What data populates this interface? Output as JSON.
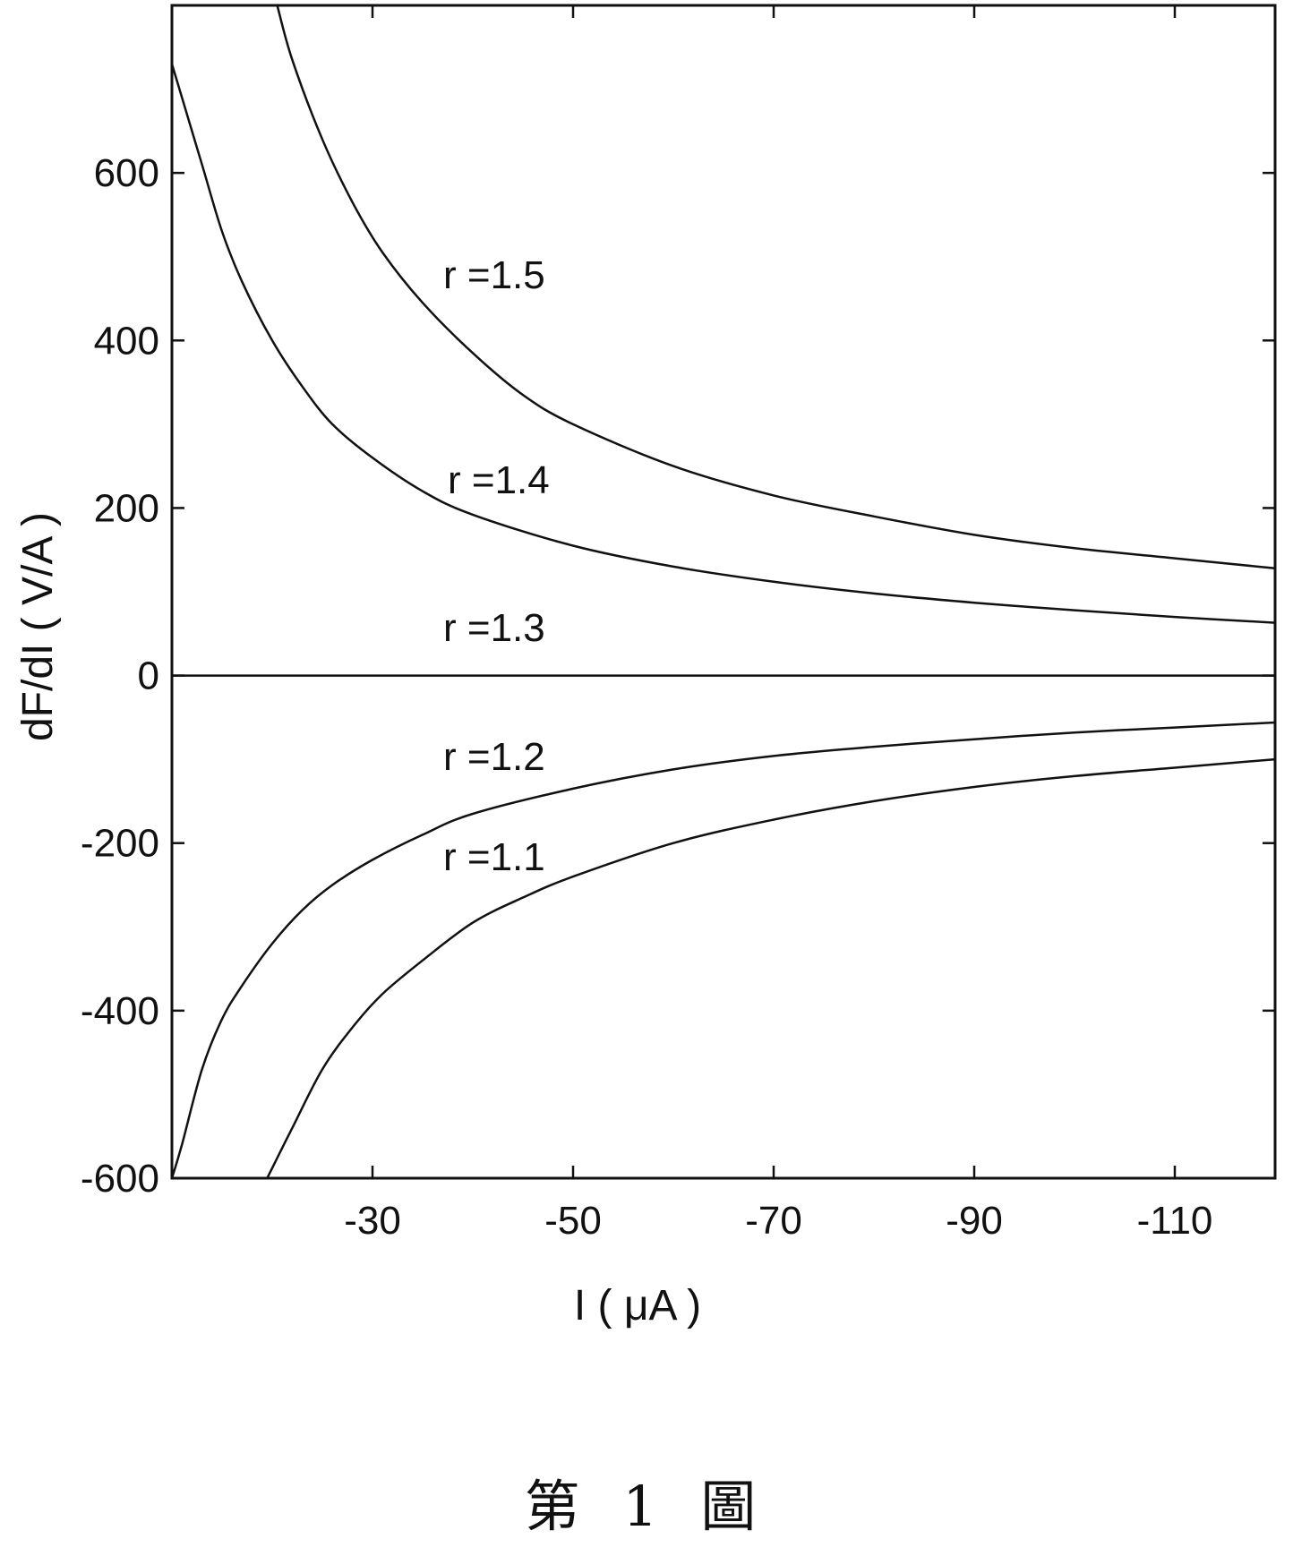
{
  "caption": "第 1 圖",
  "chart_data": {
    "type": "line",
    "title": "",
    "xlabel": "I  ( μA )",
    "ylabel": "dF/dI  ( V/A )",
    "xlim": [
      -10,
      -120
    ],
    "ylim": [
      -600,
      800
    ],
    "x_ticks": [
      -30,
      -50,
      -70,
      -90,
      -110
    ],
    "x_tick_labels": [
      "-30",
      "-50",
      "-70",
      "-90",
      "-110"
    ],
    "y_ticks": [
      -600,
      -400,
      -200,
      0,
      200,
      400,
      600
    ],
    "y_tick_labels": [
      "-600",
      "-400",
      "-200",
      "0",
      "200",
      "400",
      "600"
    ],
    "grid": false,
    "series": [
      {
        "name": "r =1.5",
        "x": [
          -20.5,
          -22,
          -25,
          -28,
          -31,
          -35,
          -40,
          -45,
          -50,
          -60,
          -70,
          -80,
          -90,
          -100,
          -110,
          -120
        ],
        "y": [
          800,
          735,
          640,
          565,
          505,
          445,
          385,
          335,
          300,
          250,
          215,
          190,
          168,
          152,
          140,
          128
        ]
      },
      {
        "name": "r =1.4",
        "x": [
          -10,
          -11,
          -13,
          -15,
          -17,
          -20,
          -23,
          -26,
          -30,
          -35,
          -40,
          -50,
          -60,
          -70,
          -80,
          -90,
          -100,
          -110,
          -120
        ],
        "y": [
          730,
          690,
          610,
          530,
          470,
          400,
          345,
          300,
          260,
          220,
          192,
          155,
          130,
          112,
          98,
          87,
          78,
          70,
          63
        ]
      },
      {
        "name": "r =1.3",
        "x": [
          -10,
          -120
        ],
        "y": [
          0,
          0
        ]
      },
      {
        "name": "r =1.2",
        "x": [
          -10,
          -11,
          -13,
          -15,
          -17,
          -20,
          -23,
          -26,
          -30,
          -35,
          -40,
          -50,
          -60,
          -70,
          -80,
          -90,
          -100,
          -110,
          -120
        ],
        "y": [
          -600,
          -560,
          -470,
          -410,
          -370,
          -320,
          -280,
          -250,
          -220,
          -190,
          -165,
          -135,
          -112,
          -96,
          -85,
          -76,
          -68,
          -62,
          -56
        ]
      },
      {
        "name": "r =1.1",
        "x": [
          -19.5,
          -22,
          -25,
          -28,
          -31,
          -35,
          -40,
          -45,
          -50,
          -60,
          -70,
          -80,
          -90,
          -100,
          -110,
          -120
        ],
        "y": [
          -600,
          -540,
          -470,
          -420,
          -380,
          -340,
          -295,
          -265,
          -240,
          -200,
          -172,
          -150,
          -133,
          -120,
          -110,
          -100
        ]
      }
    ]
  },
  "curve_labels": [
    "r =1.5",
    "r =1.4",
    "r =1.3",
    "r =1.2",
    "r =1.1"
  ]
}
